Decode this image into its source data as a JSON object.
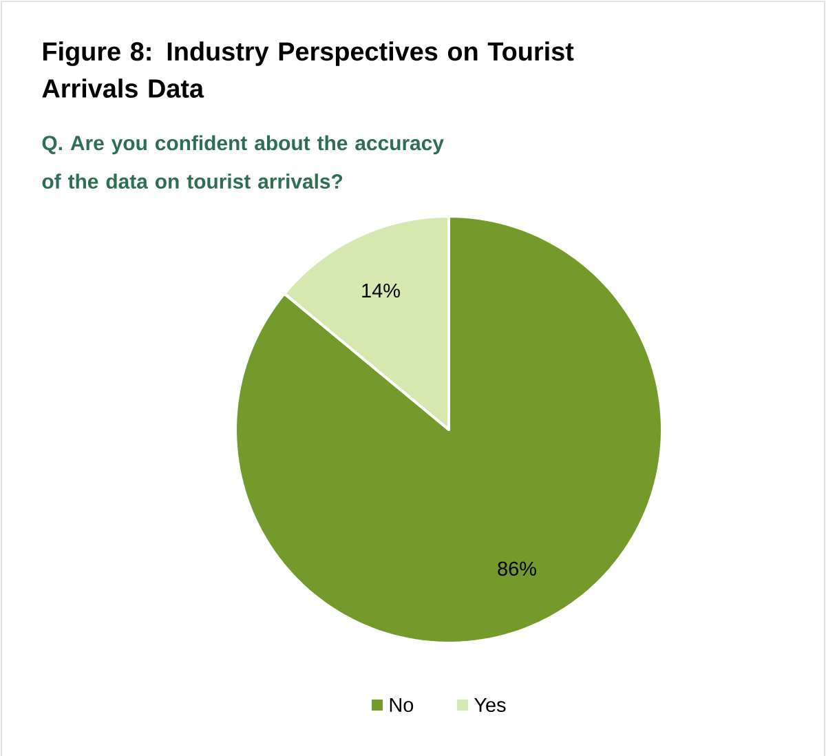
{
  "chart_data": {
    "type": "pie",
    "title": "Figure 8: Industry Perspectives on Tourist Arrivals Data",
    "subtitle": "Q. Are you confident about the accuracy of the data on tourist arrivals?",
    "categories": [
      "No",
      "Yes"
    ],
    "values": [
      86,
      14
    ],
    "colors": [
      "#739a2a",
      "#d5e8b0"
    ],
    "value_labels": [
      "86%",
      "14%"
    ],
    "legend": "bottom"
  }
}
